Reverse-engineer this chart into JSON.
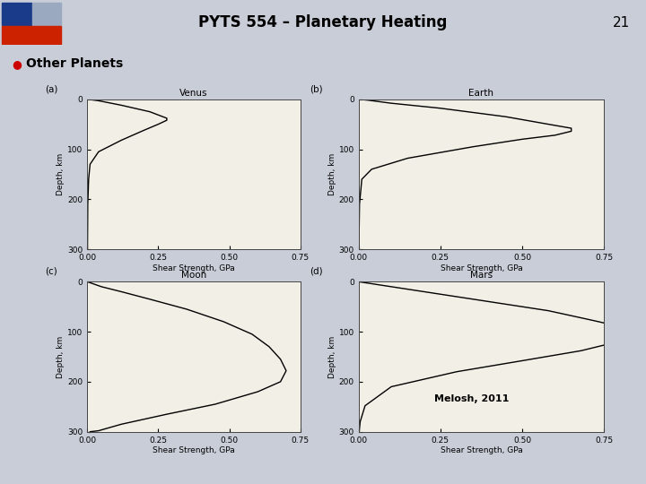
{
  "title": "PYTS 554 – Planetary Heating",
  "page_num": "21",
  "bullet_text": "Other Planets",
  "citation": "Melosh, 2011",
  "header_bg": "#b8c8e8",
  "header_text_color": "#000000",
  "bullet_color": "#cc0000",
  "slide_bg": "#c8cdd8",
  "plot_area_bg": "#e8e4d8",
  "subplots": [
    {
      "label": "(a)",
      "title": "Venus",
      "xlim": [
        0,
        0.75
      ],
      "ylim": [
        300,
        0
      ],
      "xticks": [
        0,
        0.25,
        0.5,
        0.75
      ],
      "yticks": [
        0,
        100,
        200,
        300
      ],
      "curve_x": [
        0,
        0.04,
        0.12,
        0.22,
        0.28,
        0.28,
        0.25,
        0.2,
        0.12,
        0.04,
        0.01,
        0.005,
        0.002,
        0.001
      ],
      "curve_y": [
        0,
        3,
        12,
        25,
        38,
        42,
        50,
        62,
        82,
        105,
        130,
        160,
        210,
        300
      ]
    },
    {
      "label": "(b)",
      "title": "Earth",
      "xlim": [
        0,
        0.75
      ],
      "ylim": [
        300,
        0
      ],
      "xticks": [
        0,
        0.25,
        0.5,
        0.75
      ],
      "yticks": [
        0,
        100,
        200,
        300
      ],
      "curve_x": [
        0,
        0.03,
        0.1,
        0.25,
        0.45,
        0.58,
        0.65,
        0.65,
        0.6,
        0.5,
        0.35,
        0.15,
        0.04,
        0.01,
        0.003,
        0.001
      ],
      "curve_y": [
        0,
        2,
        8,
        18,
        35,
        50,
        58,
        64,
        72,
        80,
        95,
        118,
        140,
        160,
        210,
        300
      ]
    },
    {
      "label": "(c)",
      "title": "Moon",
      "xlim": [
        0,
        0.75
      ],
      "ylim": [
        300,
        0
      ],
      "xticks": [
        0,
        0.25,
        0.5,
        0.75
      ],
      "yticks": [
        0,
        100,
        200,
        300
      ],
      "curve_x": [
        0,
        0.01,
        0.05,
        0.12,
        0.22,
        0.35,
        0.48,
        0.58,
        0.64,
        0.68,
        0.7,
        0.68,
        0.6,
        0.45,
        0.28,
        0.12,
        0.04,
        0.01
      ],
      "curve_y": [
        0,
        2,
        10,
        20,
        35,
        55,
        80,
        105,
        130,
        155,
        178,
        200,
        220,
        245,
        265,
        285,
        298,
        300
      ]
    },
    {
      "label": "(d)",
      "title": "Mars",
      "xlim": [
        0,
        0.75
      ],
      "ylim": [
        300,
        0
      ],
      "xticks": [
        0,
        0.25,
        0.5,
        0.75
      ],
      "yticks": [
        0,
        100,
        200,
        300
      ],
      "curve_x": [
        0,
        0.04,
        0.15,
        0.35,
        0.58,
        0.72,
        0.8,
        0.82,
        0.82,
        0.78,
        0.68,
        0.5,
        0.3,
        0.1,
        0.02,
        0.005,
        0.002
      ],
      "curve_y": [
        0,
        4,
        15,
        35,
        58,
        78,
        90,
        100,
        110,
        122,
        138,
        158,
        180,
        210,
        248,
        280,
        300
      ]
    }
  ]
}
